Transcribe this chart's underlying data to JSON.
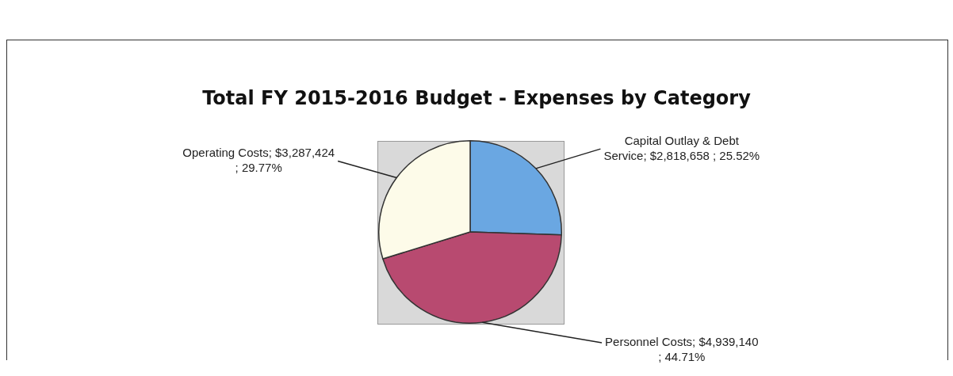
{
  "chart_data": {
    "type": "pie",
    "title": "Total FY 2015-2016 Budget - Expenses by Category",
    "categories": [
      "Capital Outlay & Debt Service",
      "Personnel Costs",
      "Operating Costs"
    ],
    "values": [
      2818658,
      4939140,
      3287424
    ],
    "colors": [
      "#6aa7e2",
      "#b84a70",
      "#fdfbe9"
    ],
    "value_labels": [
      "$2,818,658 ; 25.52%",
      "$4,939,140 ; 44.71%",
      "$3,287,424 ; 29.77%"
    ],
    "legend": false
  }
}
